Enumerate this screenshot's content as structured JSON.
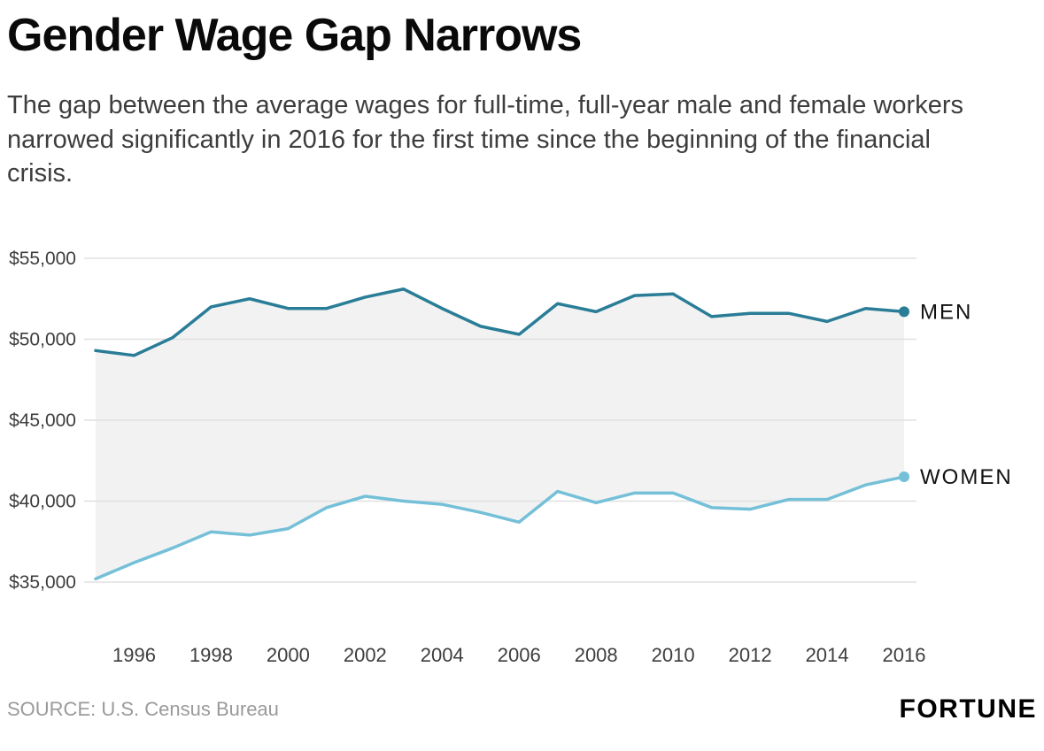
{
  "header": {
    "title": "Gender Wage Gap Narrows",
    "subtitle": "The gap between the average wages for full-time, full-year male and female workers narrowed significantly in 2016 for the first time since the beginning of the financial crisis."
  },
  "chart_data": {
    "type": "line",
    "x": [
      1995,
      1996,
      1997,
      1998,
      1999,
      2000,
      2001,
      2002,
      2003,
      2004,
      2005,
      2006,
      2007,
      2008,
      2009,
      2010,
      2011,
      2012,
      2013,
      2014,
      2015,
      2016
    ],
    "series": [
      {
        "name": "MEN",
        "color": "#2a7d97",
        "values": [
          49300,
          49000,
          50100,
          52000,
          52500,
          51900,
          51900,
          52600,
          53100,
          51900,
          50800,
          50300,
          52200,
          51700,
          52700,
          52800,
          51400,
          51600,
          51600,
          51100,
          51900,
          51700
        ]
      },
      {
        "name": "WOMEN",
        "color": "#74c0d8",
        "values": [
          35200,
          36200,
          37100,
          38100,
          37900,
          38300,
          39600,
          40300,
          40000,
          39800,
          39300,
          38700,
          40600,
          39900,
          40500,
          40500,
          39600,
          39500,
          40100,
          40100,
          41000,
          41500
        ]
      }
    ],
    "band_fill": "#f2f2f2",
    "grid_color": "#e0e0e0",
    "tick_color": "#3d3d3d",
    "label_color": "#111111",
    "ylim": [
      35000,
      55000
    ],
    "xlim": [
      1995,
      2016
    ],
    "y_ticks": [
      {
        "value": 35000,
        "label": "$35,000"
      },
      {
        "value": 40000,
        "label": "$40,000"
      },
      {
        "value": 45000,
        "label": "$45,000"
      },
      {
        "value": 50000,
        "label": "$50,000"
      },
      {
        "value": 55000,
        "label": "$55,000"
      }
    ],
    "x_ticks": [
      {
        "value": 1996,
        "label": "1996"
      },
      {
        "value": 1998,
        "label": "1998"
      },
      {
        "value": 2000,
        "label": "2000"
      },
      {
        "value": 2002,
        "label": "2002"
      },
      {
        "value": 2004,
        "label": "2004"
      },
      {
        "value": 2006,
        "label": "2006"
      },
      {
        "value": 2008,
        "label": "2008"
      },
      {
        "value": 2010,
        "label": "2010"
      },
      {
        "value": 2012,
        "label": "2012"
      },
      {
        "value": 2014,
        "label": "2014"
      },
      {
        "value": 2016,
        "label": "2016"
      }
    ],
    "grid": true,
    "legend_position": "right-of-line-ends"
  },
  "footer": {
    "source": "SOURCE: U.S. Census Bureau",
    "brand": "FORTUNE"
  }
}
